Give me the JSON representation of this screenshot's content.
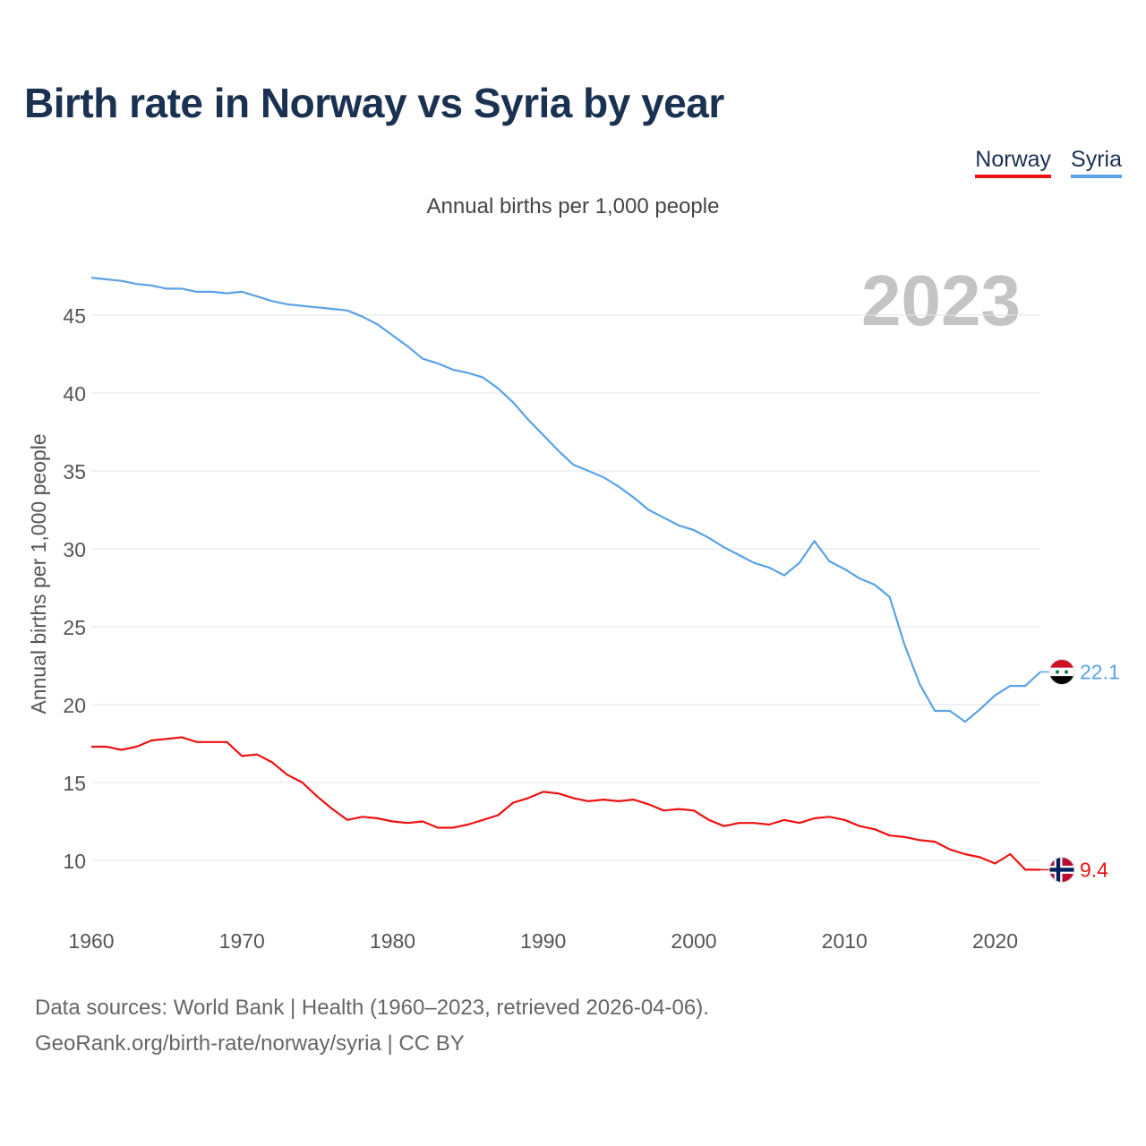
{
  "title": "Birth rate in Norway vs Syria by year",
  "subtitle": "Annual births per 1,000 people",
  "year_label": "2023",
  "legend": [
    {
      "name": "Norway",
      "color": "#ee1111"
    },
    {
      "name": "Syria",
      "color": "#5aa2e6"
    }
  ],
  "source_line1": "Data sources: World Bank | Health (1960–2023, retrieved 2026-04-06).",
  "source_line2": "GeoRank.org/birth-rate/norway/syria | CC BY",
  "chart_data": {
    "type": "line",
    "title": "Birth rate in Norway vs Syria by year",
    "xlabel": "",
    "ylabel": "Annual births per 1,000 people",
    "xlim": [
      1960,
      2023
    ],
    "ylim": [
      7,
      47.5
    ],
    "grid": true,
    "x_ticks": [
      "1960",
      "1970",
      "1980",
      "1990",
      "2000",
      "2010",
      "2020"
    ],
    "y_ticks": [
      "10",
      "15",
      "20",
      "25",
      "30",
      "35",
      "40",
      "45"
    ],
    "x": [
      1960,
      1961,
      1962,
      1963,
      1964,
      1965,
      1966,
      1967,
      1968,
      1969,
      1970,
      1971,
      1972,
      1973,
      1974,
      1975,
      1976,
      1977,
      1978,
      1979,
      1980,
      1981,
      1982,
      1983,
      1984,
      1985,
      1986,
      1987,
      1988,
      1989,
      1990,
      1991,
      1992,
      1993,
      1994,
      1995,
      1996,
      1997,
      1998,
      1999,
      2000,
      2001,
      2002,
      2003,
      2004,
      2005,
      2006,
      2007,
      2008,
      2009,
      2010,
      2011,
      2012,
      2013,
      2014,
      2015,
      2016,
      2017,
      2018,
      2019,
      2020,
      2021,
      2022,
      2023
    ],
    "series": [
      {
        "name": "Norway",
        "color": "#ee1111",
        "end_label": "9.4",
        "values": [
          17.3,
          17.3,
          17.1,
          17.3,
          17.7,
          17.8,
          17.9,
          17.6,
          17.6,
          17.6,
          16.7,
          16.8,
          16.3,
          15.5,
          15.0,
          14.1,
          13.3,
          12.6,
          12.8,
          12.7,
          12.5,
          12.4,
          12.5,
          12.1,
          12.1,
          12.3,
          12.6,
          12.9,
          13.7,
          14.0,
          14.4,
          14.3,
          14.0,
          13.8,
          13.9,
          13.8,
          13.9,
          13.6,
          13.2,
          13.3,
          13.2,
          12.6,
          12.2,
          12.4,
          12.4,
          12.3,
          12.6,
          12.4,
          12.7,
          12.8,
          12.6,
          12.2,
          12.0,
          11.6,
          11.5,
          11.3,
          11.2,
          10.7,
          10.4,
          10.2,
          9.8,
          10.4,
          9.4,
          9.4
        ]
      },
      {
        "name": "Syria",
        "color": "#5aa2e6",
        "end_label": "22.1",
        "values": [
          47.4,
          47.3,
          47.2,
          47.0,
          46.9,
          46.7,
          46.7,
          46.5,
          46.5,
          46.4,
          46.5,
          46.2,
          45.9,
          45.7,
          45.6,
          45.5,
          45.4,
          45.3,
          44.9,
          44.4,
          43.7,
          43.0,
          42.2,
          41.9,
          41.5,
          41.3,
          41.0,
          40.3,
          39.4,
          38.3,
          37.3,
          36.3,
          35.4,
          35.0,
          34.6,
          34.0,
          33.3,
          32.5,
          32.0,
          31.5,
          31.2,
          30.7,
          30.1,
          29.6,
          29.1,
          28.8,
          28.3,
          29.1,
          30.5,
          29.2,
          28.7,
          28.1,
          27.7,
          26.9,
          23.8,
          21.3,
          19.6,
          19.6,
          18.9,
          19.7,
          20.6,
          21.2,
          21.2,
          22.1
        ]
      }
    ]
  }
}
